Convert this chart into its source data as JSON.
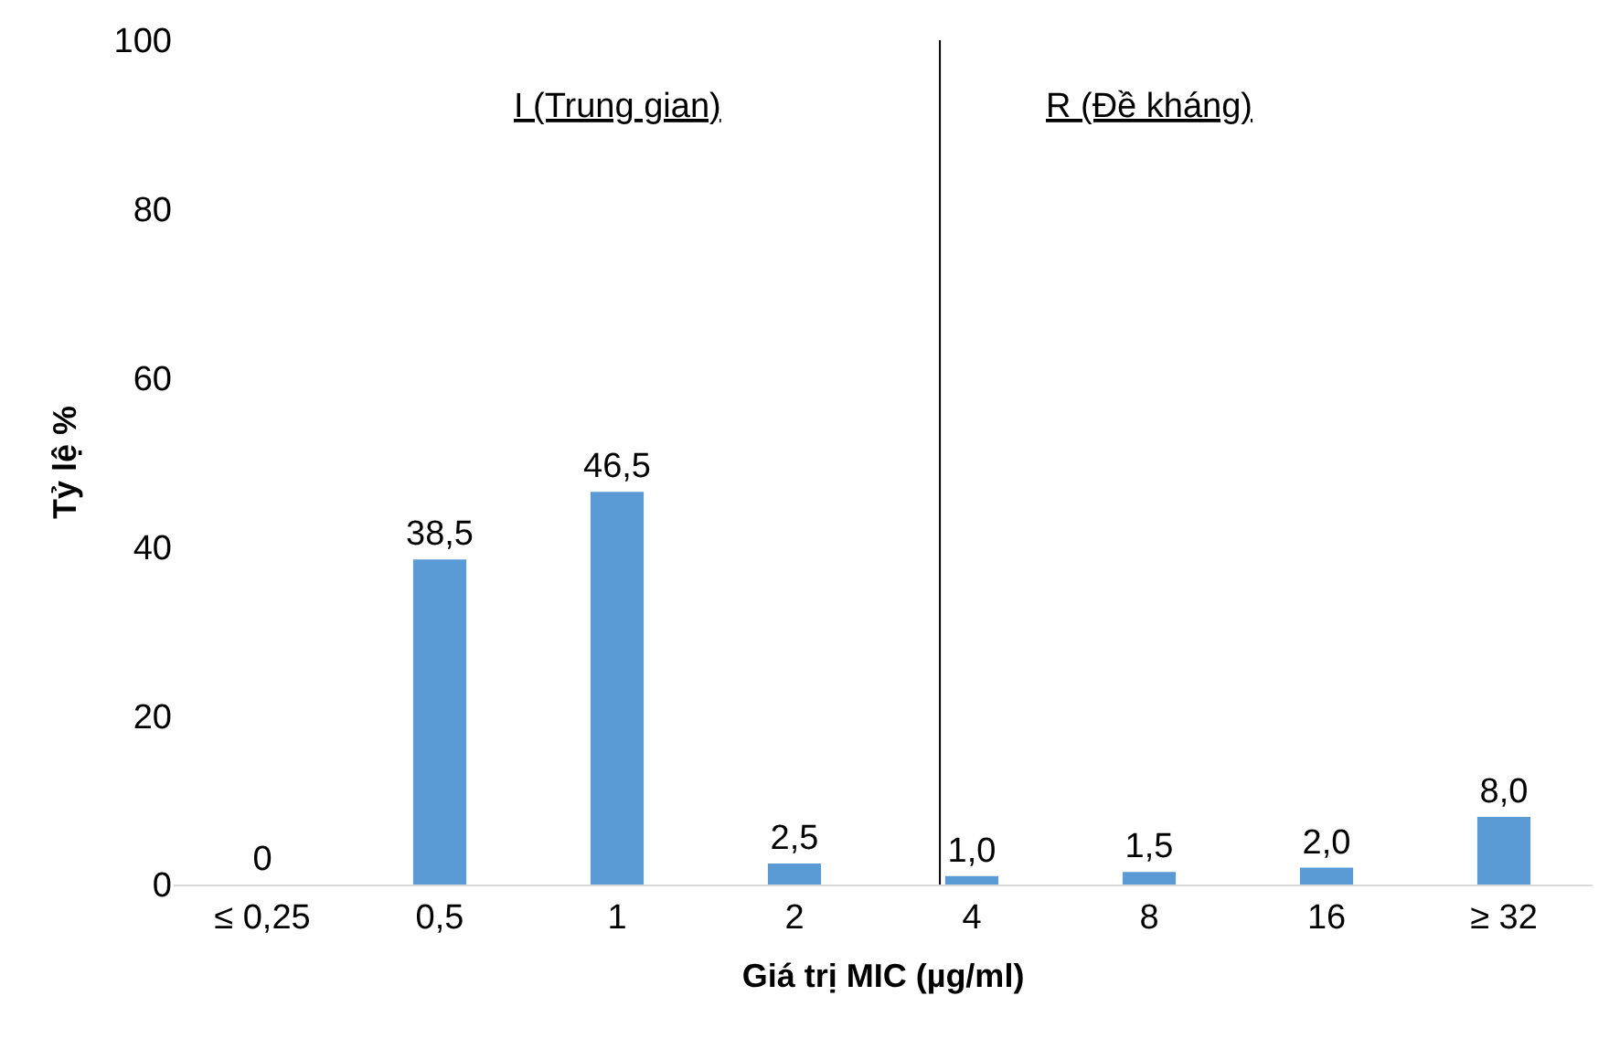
{
  "chart_data": {
    "type": "bar",
    "xlabel": "Giá trị MIC (µg/ml)",
    "ylabel": "Tỷ lệ %",
    "categories": [
      "≤ 0,25",
      "0,5",
      "1",
      "2",
      "4",
      "8",
      "16",
      "≥ 32"
    ],
    "values": [
      0,
      38.5,
      46.5,
      2.5,
      1.0,
      1.5,
      2.0,
      8.0
    ],
    "value_labels": [
      "0",
      "38,5",
      "46,5",
      "2,5",
      "1,0",
      "1,5",
      "2,0",
      "8,0"
    ],
    "color": "#5b9bd5",
    "ylim": [
      0,
      100
    ],
    "yticks": [
      0,
      20,
      40,
      60,
      80,
      100
    ],
    "legend": false,
    "ref_lines": [
      {
        "axis": "x",
        "value": "4",
        "color": "#000000"
      }
    ],
    "annotations": [
      "I (Trung gian)",
      "R (Đề kháng)"
    ]
  }
}
